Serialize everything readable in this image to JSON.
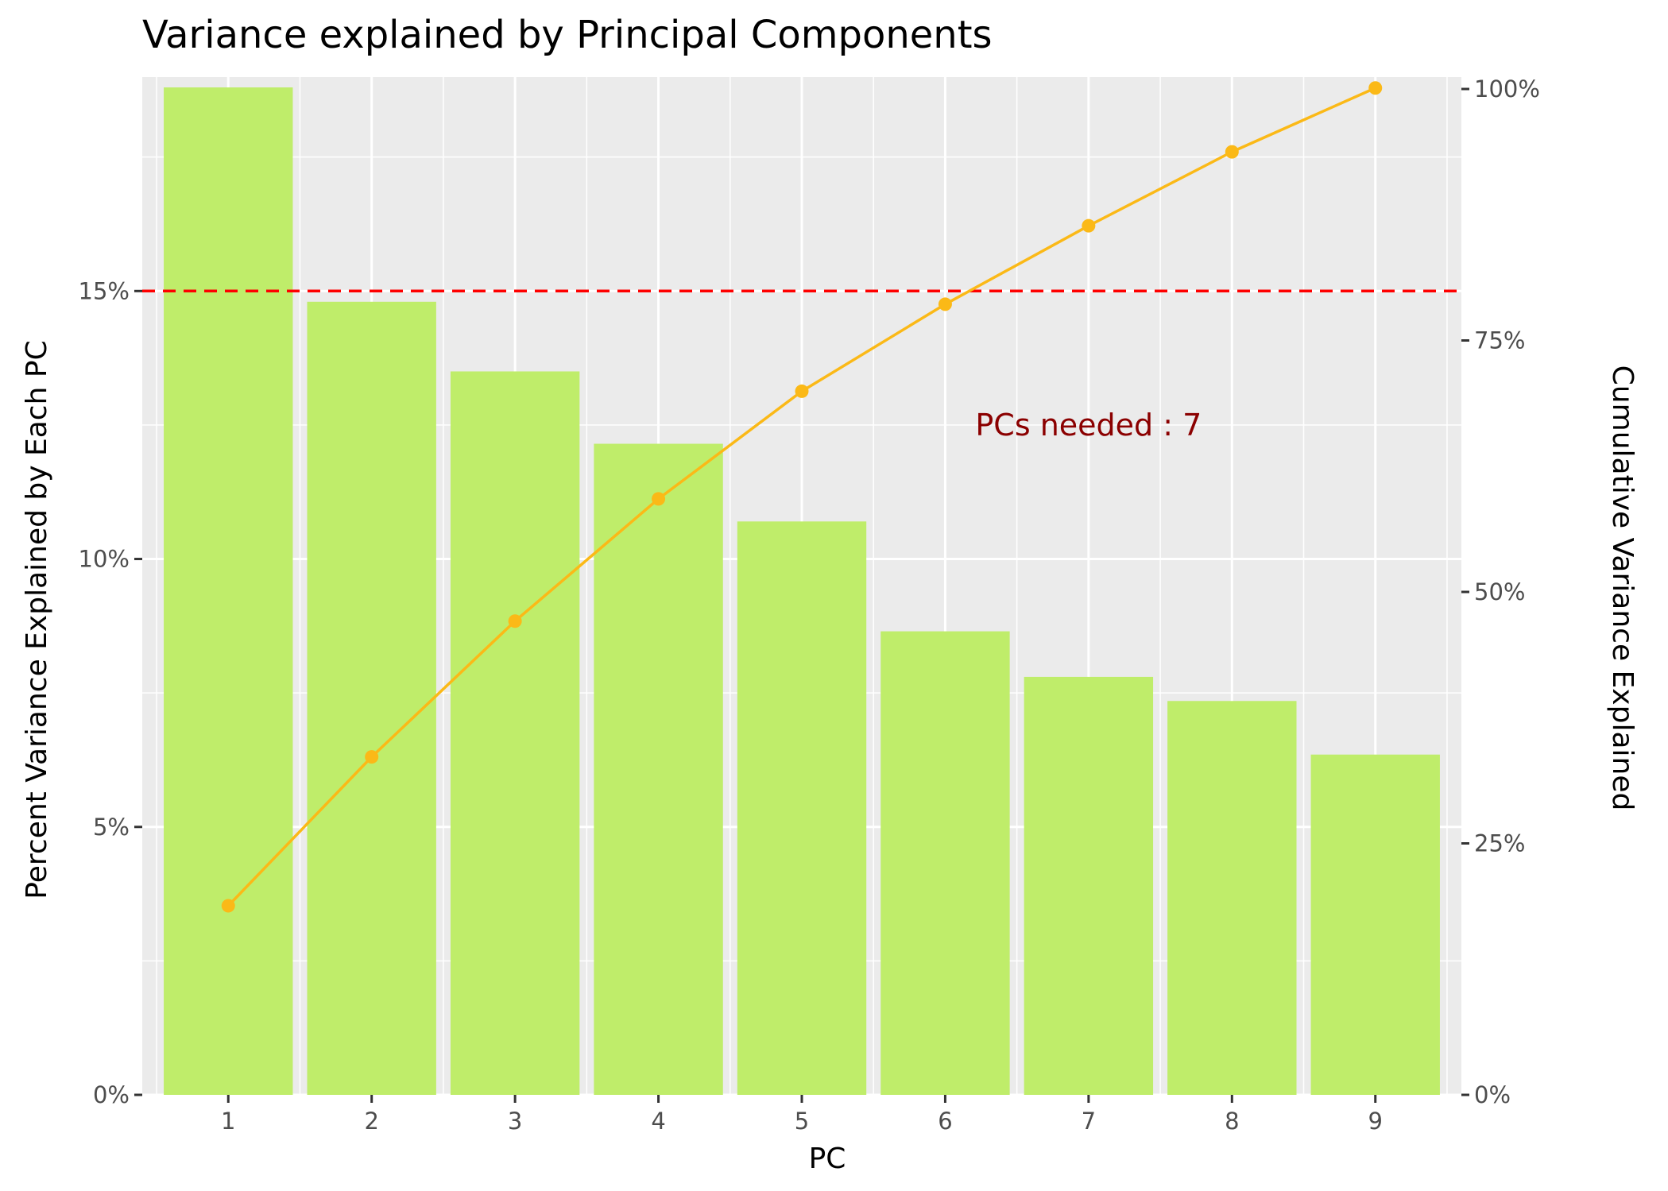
{
  "chart_data": {
    "type": "bar",
    "title": "Variance explained by Principal Components",
    "xlabel": "PC",
    "ylabel": "Percent Variance Explained by Each PC",
    "y2label": "Cumulative Variance Explained",
    "categories": [
      "1",
      "2",
      "3",
      "4",
      "5",
      "6",
      "7",
      "8",
      "9"
    ],
    "series": [
      {
        "type": "bar",
        "axis": "left",
        "color": "#bfed6a",
        "values": [
          18.8,
          14.8,
          13.5,
          12.15,
          10.7,
          8.65,
          7.8,
          7.35,
          6.35
        ]
      },
      {
        "type": "line",
        "axis": "right",
        "color": "#fbb917",
        "values": [
          18.8,
          33.6,
          47.1,
          59.25,
          69.95,
          78.6,
          86.4,
          93.75,
          100.1
        ]
      }
    ],
    "ylim": [
      0,
      18.8
    ],
    "y_ticks": [
      0,
      5,
      10,
      15
    ],
    "y_tick_labels": [
      "0%",
      "5%",
      "10%",
      "15%"
    ],
    "y2lim": [
      0,
      100
    ],
    "y2_ticks": [
      0,
      25,
      50,
      75,
      100
    ],
    "y2_tick_labels": [
      "0%",
      "25%",
      "50%",
      "75%",
      "100%"
    ],
    "reference_line": {
      "axis": "left",
      "value": 15,
      "color": "#ff0000",
      "style": "dashed"
    },
    "annotation": {
      "text": "PCs needed : 7",
      "x": 7.0,
      "y": 12.5,
      "color": "#8b0000"
    },
    "grid": true,
    "panel_background": "#ebebeb",
    "grid_color": "#ffffff"
  }
}
